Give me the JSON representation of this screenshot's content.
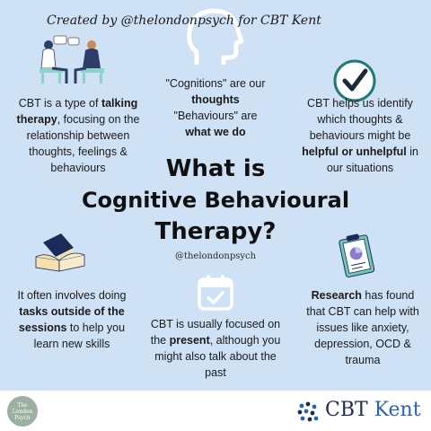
{
  "title": {
    "line1": "What is",
    "line2": "Cognitive Behavioural",
    "line3": "Therapy?",
    "handle": "@thelondonpsych"
  },
  "blurbs": {
    "talking": {
      "pre": "CBT is a type of ",
      "bold1": "talking therapy",
      "post": ", focusing on the relationship between thoughts, feelings & behaviours"
    },
    "cognitions": {
      "l1": "\"Cognitions\" are our",
      "l2": "thoughts",
      "l3": "\"Behaviours\" are",
      "l4": "what we do"
    },
    "identify": {
      "pre": "CBT helps us identify which thoughts & behaviours might be ",
      "bold1": "helpful or unhelpful",
      "post": " in our situations"
    },
    "tasks": {
      "pre": "It often involves doing ",
      "bold1": "tasks outside of the sessions",
      "post": " to help you learn new skills"
    },
    "present": {
      "pre": "CBT is usually focused on the ",
      "bold1": "present",
      "post": ", although you might also talk about the past"
    },
    "research": {
      "bold1": "Research",
      "post": " has found that CBT can help with issues like anxiety, depression, OCD & trauma"
    }
  },
  "icons": {
    "therapy": "therapy-session-icon",
    "head": "head-icon",
    "check": "checkmark-icon",
    "books": "books-icon",
    "calendar": "calendar-icon",
    "clipboard": "clipboard-icon"
  },
  "footer": {
    "credit": "Created by @thelondonpsych for CBT Kent",
    "seal_text": "The London Psych",
    "brand_cbt": "CBT",
    "brand_kent": "Kent"
  },
  "colors": {
    "background": "#cfe1f5",
    "check_green": "#1f7a73",
    "brand_navy": "#1c2a5a",
    "brand_blue": "#2a63b0"
  }
}
